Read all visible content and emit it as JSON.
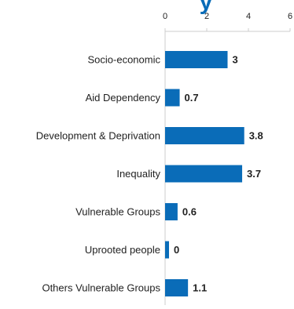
{
  "colors": {
    "bar": "#0A6CB8",
    "title": "#0A6CB8",
    "axis": "#cccccc",
    "text": "#222222"
  },
  "chart_data": {
    "type": "bar",
    "orientation": "horizontal",
    "title_fragment": "y",
    "categories": [
      "Socio-economic",
      "Aid Dependency",
      "Development & Deprivation",
      "Inequality",
      "Vulnerable Groups",
      "Uprooted people",
      "Others Vulnerable Groups"
    ],
    "values": [
      3,
      0.7,
      3.8,
      3.7,
      0.6,
      0,
      1.1
    ],
    "value_labels": [
      "3",
      "0.7",
      "3.8",
      "3.7",
      "0.6",
      "0",
      "1.1"
    ],
    "xlim": [
      0,
      6
    ],
    "xticks": [
      0,
      2,
      4,
      6
    ],
    "xtick_labels": [
      "0",
      "2",
      "4",
      "6"
    ],
    "grid": false,
    "axis_position": "top"
  }
}
